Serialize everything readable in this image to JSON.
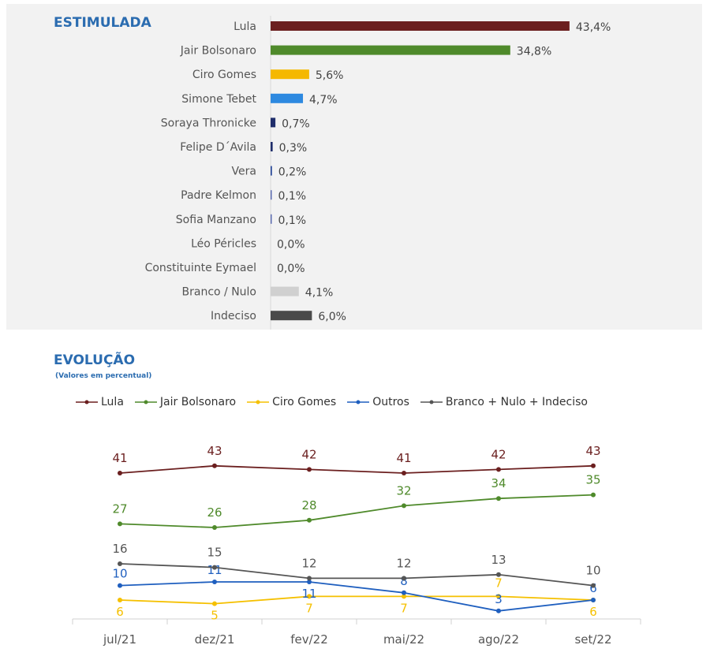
{
  "chart_data": [
    {
      "type": "bar",
      "orientation": "horizontal",
      "title": "ESTIMULADA",
      "categories": [
        "Lula",
        "Jair Bolsonaro",
        "Ciro Gomes",
        "Simone Tebet",
        "Soraya Thronicke",
        "Felipe D´Avila",
        "Vera",
        "Padre Kelmon",
        "Sofia Manzano",
        "Léo Péricles",
        "Constituinte Eymael",
        "Branco / Nulo",
        "Indeciso"
      ],
      "values": [
        43.4,
        34.8,
        5.6,
        4.7,
        0.7,
        0.3,
        0.2,
        0.1,
        0.1,
        0.0,
        0.0,
        4.1,
        6.0
      ],
      "labels": [
        "43,4%",
        "34,8%",
        "5,6%",
        "4,7%",
        "0,7%",
        "0,3%",
        "0,2%",
        "0,1%",
        "0,1%",
        "0,0%",
        "0,0%",
        "4,1%",
        "6,0%"
      ],
      "colors": [
        "#6b1f1f",
        "#4f8a2b",
        "#f5b800",
        "#2d89e0",
        "#1f2d6b",
        "#1f2d6b",
        "#2a4a9a",
        "#5a6ab0",
        "#5a6ab0",
        "#999999",
        "#999999",
        "#d0d0d0",
        "#4a4a4a"
      ]
    },
    {
      "type": "line",
      "title": "EVOLUÇÃO",
      "subtitle": "(Valores em percentual)",
      "categories": [
        "jul/21",
        "dez/21",
        "fev/22",
        "mai/22",
        "ago/22",
        "set/22"
      ],
      "series": [
        {
          "name": "Lula",
          "color": "#6b1f1f",
          "values": [
            41,
            43,
            42,
            41,
            42,
            43
          ]
        },
        {
          "name": "Jair Bolsonaro",
          "color": "#4f8a2b",
          "values": [
            27,
            26,
            28,
            32,
            34,
            35
          ]
        },
        {
          "name": "Ciro Gomes",
          "color": "#f5c000",
          "values": [
            6,
            5,
            7,
            7,
            7,
            6
          ]
        },
        {
          "name": "Outros",
          "color": "#1f5fbf",
          "values": [
            10,
            11,
            11,
            8,
            3,
            6
          ]
        },
        {
          "name": "Branco + Nulo + Indeciso",
          "color": "#555555",
          "values": [
            16,
            15,
            12,
            12,
            13,
            10
          ]
        }
      ],
      "legend_position": "top"
    }
  ]
}
